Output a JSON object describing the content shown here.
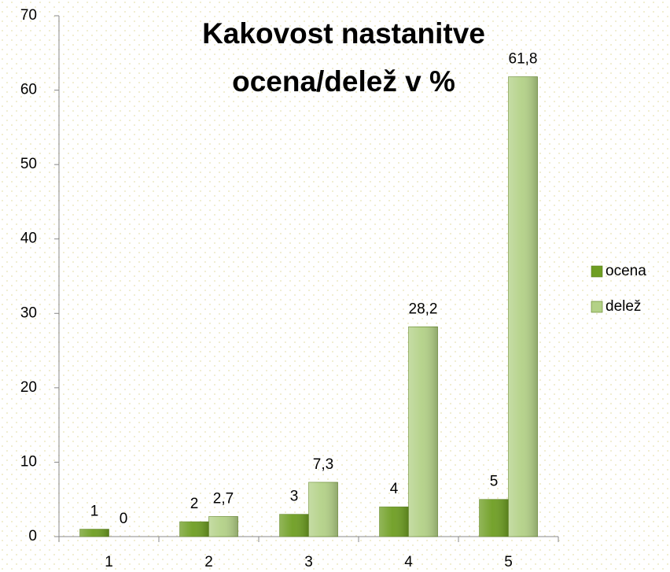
{
  "chart_data": {
    "type": "bar",
    "title": [
      "Kakovost nastanitve",
      "ocena/delež v %"
    ],
    "categories": [
      "1",
      "2",
      "3",
      "4",
      "5"
    ],
    "series": [
      {
        "name": "ocena",
        "color": "#6e9e22",
        "values": [
          1,
          2,
          3,
          4,
          5
        ]
      },
      {
        "name": "delež",
        "color": "#b3d187",
        "values": [
          0,
          2.7,
          7.3,
          28.2,
          61.8
        ],
        "value_labels": [
          "0",
          "2,7",
          "7,3",
          "28,2",
          "61,8"
        ]
      }
    ],
    "ylim": [
      0,
      70
    ],
    "yticks": [
      0,
      10,
      20,
      30,
      40,
      50,
      60,
      70
    ],
    "legend": "right"
  }
}
